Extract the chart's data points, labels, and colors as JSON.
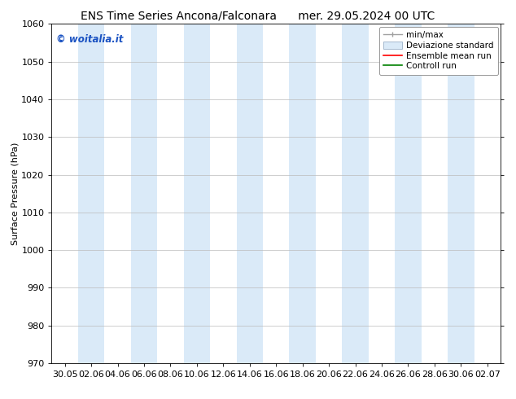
{
  "title_left": "ENS Time Series Ancona/Falconara",
  "title_right": "mer. 29.05.2024 00 UTC",
  "ylabel": "Surface Pressure (hPa)",
  "ylim": [
    970,
    1060
  ],
  "yticks": [
    970,
    980,
    990,
    1000,
    1010,
    1020,
    1030,
    1040,
    1050,
    1060
  ],
  "xtick_labels": [
    "30.05",
    "02.06",
    "04.06",
    "06.06",
    "08.06",
    "10.06",
    "12.06",
    "14.06",
    "16.06",
    "18.06",
    "20.06",
    "22.06",
    "24.06",
    "26.06",
    "28.06",
    "30.06",
    "02.07"
  ],
  "background_color": "#ffffff",
  "plot_bg_color": "#ffffff",
  "watermark_text": "© woitalia.it",
  "watermark_color": "#1a52c2",
  "legend_entries": [
    "min/max",
    "Deviazione standard",
    "Ensemble mean run",
    "Controll run"
  ],
  "legend_colors_line": [
    "#a0a0a0",
    "#c8d8f0",
    "#ff0000",
    "#008000"
  ],
  "shaded_band_color": "#daeaf8",
  "shaded_band_alpha": 1.0,
  "shaded_columns": [
    1,
    3,
    5,
    7,
    9,
    11,
    13,
    15
  ],
  "n_xticks": 17,
  "title_fontsize": 10,
  "axis_fontsize": 8,
  "tick_fontsize": 8,
  "legend_fontsize": 7.5
}
